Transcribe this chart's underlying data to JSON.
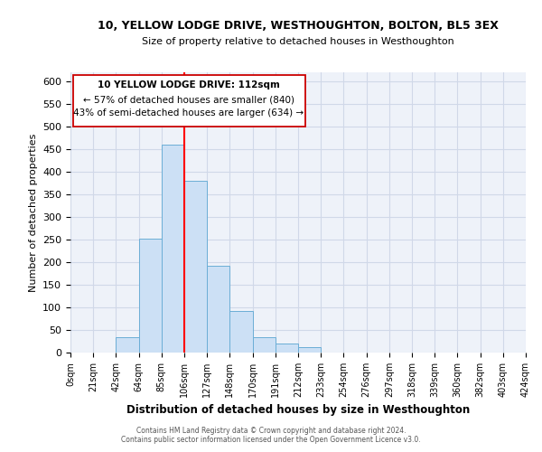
{
  "title": "10, YELLOW LODGE DRIVE, WESTHOUGHTON, BOLTON, BL5 3EX",
  "subtitle": "Size of property relative to detached houses in Westhoughton",
  "xlabel": "Distribution of detached houses by size in Westhoughton",
  "ylabel": "Number of detached properties",
  "bar_color": "#cce0f5",
  "bar_edge_color": "#6baed6",
  "grid_color": "#d0d8e8",
  "background_color": "#eef2f9",
  "tick_labels": [
    "0sqm",
    "21sqm",
    "42sqm",
    "64sqm",
    "85sqm",
    "106sqm",
    "127sqm",
    "148sqm",
    "170sqm",
    "191sqm",
    "212sqm",
    "233sqm",
    "254sqm",
    "276sqm",
    "297sqm",
    "318sqm",
    "339sqm",
    "360sqm",
    "382sqm",
    "403sqm",
    "424sqm"
  ],
  "bar_values": [
    0,
    0,
    35,
    253,
    460,
    381,
    193,
    93,
    35,
    20,
    12,
    0,
    0,
    0,
    0,
    0,
    0,
    0,
    0,
    0
  ],
  "ylim": [
    0,
    620
  ],
  "yticks": [
    0,
    50,
    100,
    150,
    200,
    250,
    300,
    350,
    400,
    450,
    500,
    550,
    600
  ],
  "red_line_x": 5,
  "annotation_title": "10 YELLOW LODGE DRIVE: 112sqm",
  "annotation_line1": "← 57% of detached houses are smaller (840)",
  "annotation_line2": "43% of semi-detached houses are larger (634) →",
  "footer_line1": "Contains HM Land Registry data © Crown copyright and database right 2024.",
  "footer_line2": "Contains public sector information licensed under the Open Government Licence v3.0."
}
